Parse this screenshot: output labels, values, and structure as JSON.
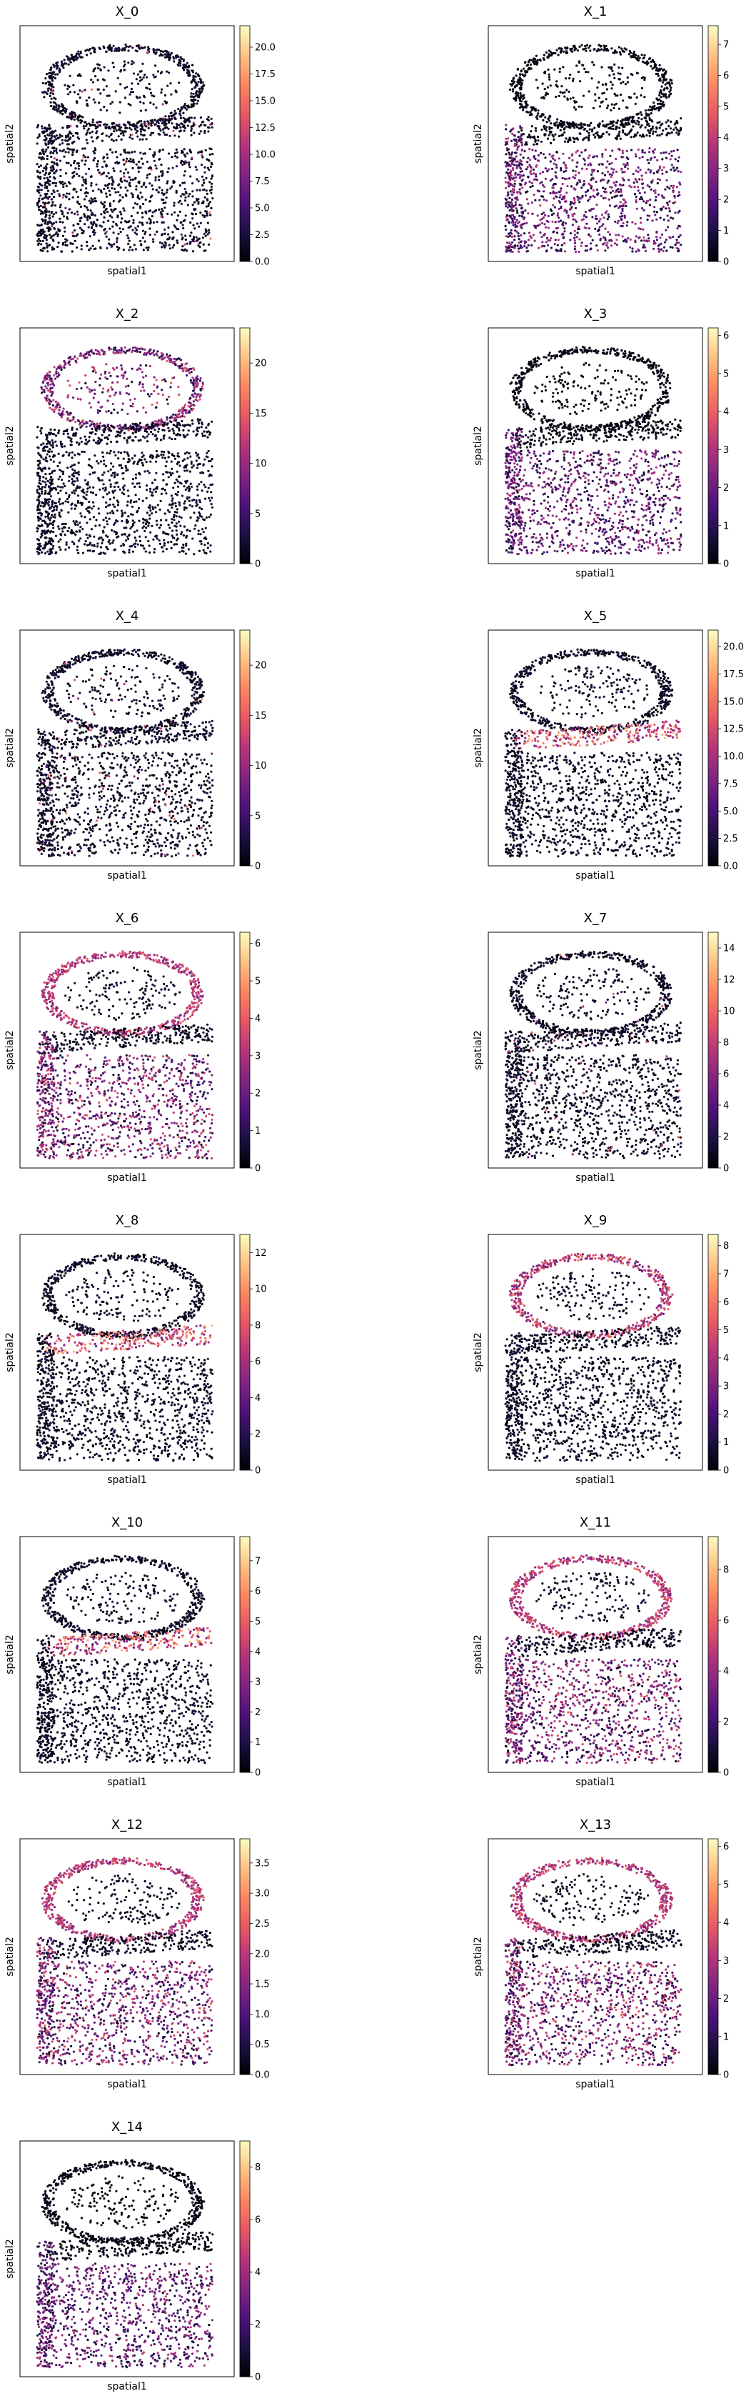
{
  "figure": {
    "colormap": "magma",
    "colors": {
      "background": "#ffffff",
      "frame": "#000000",
      "magma_stops": [
        "#000004",
        "#1c1044",
        "#4f127b",
        "#812581",
        "#b5367a",
        "#e55964",
        "#fb8761",
        "#fec287",
        "#fcfdbf"
      ]
    }
  },
  "chart_data": [
    {
      "type": "scatter",
      "title": "X_0",
      "xlabel": "spatial1",
      "ylabel": "spatial2",
      "colorbar": {
        "ticks": [
          "0.0",
          "2.5",
          "5.0",
          "7.5",
          "10.0",
          "12.5",
          "15.0",
          "17.5",
          "20.0"
        ],
        "min": 0,
        "max": 22
      },
      "pattern": "sparse"
    },
    {
      "type": "scatter",
      "title": "X_1",
      "xlabel": "spatial1",
      "ylabel": "spatial2",
      "colorbar": {
        "ticks": [
          "0",
          "1",
          "2",
          "3",
          "4",
          "5",
          "6",
          "7"
        ],
        "min": 0,
        "max": 7.6
      },
      "pattern": "lower"
    },
    {
      "type": "scatter",
      "title": "X_2",
      "xlabel": "spatial1",
      "ylabel": "spatial2",
      "colorbar": {
        "ticks": [
          "0",
          "5",
          "10",
          "15",
          "20"
        ],
        "min": 0,
        "max": 23.5
      },
      "pattern": "upper"
    },
    {
      "type": "scatter",
      "title": "X_3",
      "xlabel": "spatial1",
      "ylabel": "spatial2",
      "colorbar": {
        "ticks": [
          "0",
          "1",
          "2",
          "3",
          "4",
          "5",
          "6"
        ],
        "min": 0,
        "max": 6.2
      },
      "pattern": "lower"
    },
    {
      "type": "scatter",
      "title": "X_4",
      "xlabel": "spatial1",
      "ylabel": "spatial2",
      "colorbar": {
        "ticks": [
          "0",
          "5",
          "10",
          "15",
          "20"
        ],
        "min": 0,
        "max": 23.5
      },
      "pattern": "sparse"
    },
    {
      "type": "scatter",
      "title": "X_5",
      "xlabel": "spatial1",
      "ylabel": "spatial2",
      "colorbar": {
        "ticks": [
          "0.0",
          "2.5",
          "5.0",
          "7.5",
          "10.0",
          "12.5",
          "15.0",
          "17.5",
          "20.0"
        ],
        "min": 0,
        "max": 21.5
      },
      "pattern": "band"
    },
    {
      "type": "scatter",
      "title": "X_6",
      "xlabel": "spatial1",
      "ylabel": "spatial2",
      "colorbar": {
        "ticks": [
          "0",
          "1",
          "2",
          "3",
          "4",
          "5",
          "6"
        ],
        "min": 0,
        "max": 6.3
      },
      "pattern": "ring_lower"
    },
    {
      "type": "scatter",
      "title": "X_7",
      "xlabel": "spatial1",
      "ylabel": "spatial2",
      "colorbar": {
        "ticks": [
          "0",
          "2",
          "4",
          "6",
          "8",
          "10",
          "12",
          "14"
        ],
        "min": 0,
        "max": 15
      },
      "pattern": "sparse"
    },
    {
      "type": "scatter",
      "title": "X_8",
      "xlabel": "spatial1",
      "ylabel": "spatial2",
      "colorbar": {
        "ticks": [
          "0",
          "2",
          "4",
          "6",
          "8",
          "10",
          "12"
        ],
        "min": 0,
        "max": 13
      },
      "pattern": "band"
    },
    {
      "type": "scatter",
      "title": "X_9",
      "xlabel": "spatial1",
      "ylabel": "spatial2",
      "colorbar": {
        "ticks": [
          "0",
          "1",
          "2",
          "3",
          "4",
          "5",
          "6",
          "7",
          "8"
        ],
        "min": 0,
        "max": 8.4
      },
      "pattern": "ring"
    },
    {
      "type": "scatter",
      "title": "X_10",
      "xlabel": "spatial1",
      "ylabel": "spatial2",
      "colorbar": {
        "ticks": [
          "0",
          "1",
          "2",
          "3",
          "4",
          "5",
          "6",
          "7"
        ],
        "min": 0,
        "max": 7.8
      },
      "pattern": "band"
    },
    {
      "type": "scatter",
      "title": "X_11",
      "xlabel": "spatial1",
      "ylabel": "spatial2",
      "colorbar": {
        "ticks": [
          "0",
          "2",
          "4",
          "6",
          "8"
        ],
        "min": 0,
        "max": 9.3
      },
      "pattern": "ring_lower"
    },
    {
      "type": "scatter",
      "title": "X_12",
      "xlabel": "spatial1",
      "ylabel": "spatial2",
      "colorbar": {
        "ticks": [
          "0.0",
          "0.5",
          "1.0",
          "1.5",
          "2.0",
          "2.5",
          "3.0",
          "3.5"
        ],
        "min": 0,
        "max": 3.9
      },
      "pattern": "ring_lower"
    },
    {
      "type": "scatter",
      "title": "X_13",
      "xlabel": "spatial1",
      "ylabel": "spatial2",
      "colorbar": {
        "ticks": [
          "0",
          "1",
          "2",
          "3",
          "4",
          "5",
          "6"
        ],
        "min": 0,
        "max": 6.2
      },
      "pattern": "ring_lower"
    },
    {
      "type": "scatter",
      "title": "X_14",
      "xlabel": "spatial1",
      "ylabel": "spatial2",
      "colorbar": {
        "ticks": [
          "0",
          "2",
          "4",
          "6",
          "8"
        ],
        "min": 0,
        "max": 9
      },
      "pattern": "lower"
    }
  ]
}
